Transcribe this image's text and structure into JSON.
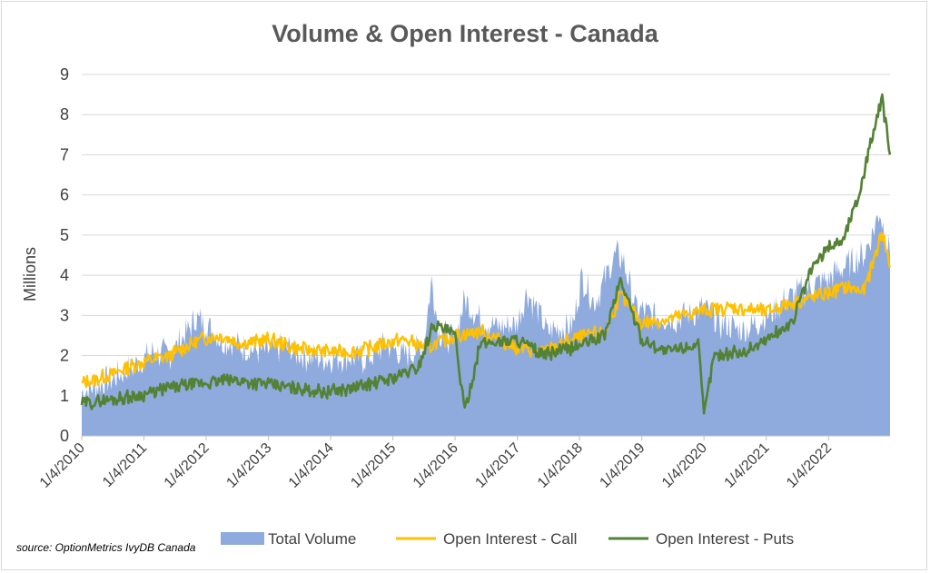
{
  "chart_data": {
    "type": "area",
    "title": "Volume & Open Interest - Canada",
    "ylabel": "Millions",
    "xlabel": "",
    "ylim": [
      0,
      9
    ],
    "yticks": [
      0,
      1,
      2,
      3,
      4,
      5,
      6,
      7,
      8,
      9
    ],
    "xticks": [
      "1/4/2010",
      "1/4/2011",
      "1/4/2012",
      "1/4/2013",
      "1/4/2014",
      "1/4/2015",
      "1/4/2016",
      "1/4/2017",
      "1/4/2018",
      "1/4/2019",
      "1/4/2020",
      "1/4/2021",
      "1/4/2022"
    ],
    "xrange": [
      "2010-01-04",
      "2022-12-31"
    ],
    "grid": "horizontal",
    "legend_position": "bottom",
    "source_note": "source: OptionMetrics IvyDB Canada",
    "series": [
      {
        "name": "Total Volume",
        "kind": "area",
        "color": "#8faadc",
        "points": [
          [
            "2010-01-04",
            1.1
          ],
          [
            "2010-07-01",
            1.4
          ],
          [
            "2010-12-01",
            1.8
          ],
          [
            "2011-03-01",
            2.1
          ],
          [
            "2011-06-01",
            2.0
          ],
          [
            "2011-09-01",
            2.5
          ],
          [
            "2011-11-01",
            2.9
          ],
          [
            "2012-01-04",
            2.8
          ],
          [
            "2012-04-01",
            2.4
          ],
          [
            "2012-08-01",
            2.2
          ],
          [
            "2012-12-01",
            2.1
          ],
          [
            "2013-04-01",
            2.2
          ],
          [
            "2013-08-01",
            2.0
          ],
          [
            "2013-12-01",
            1.9
          ],
          [
            "2014-04-01",
            2.0
          ],
          [
            "2014-08-01",
            1.9
          ],
          [
            "2014-12-01",
            2.3
          ],
          [
            "2015-03-01",
            2.0
          ],
          [
            "2015-07-01",
            2.2
          ],
          [
            "2015-08-20",
            3.9
          ],
          [
            "2015-10-01",
            2.6
          ],
          [
            "2016-01-04",
            2.4
          ],
          [
            "2016-03-01",
            3.4
          ],
          [
            "2016-06-01",
            2.9
          ],
          [
            "2016-10-01",
            2.7
          ],
          [
            "2017-01-04",
            2.8
          ],
          [
            "2017-03-01",
            3.6
          ],
          [
            "2017-07-01",
            2.6
          ],
          [
            "2017-12-01",
            2.8
          ],
          [
            "2018-01-15",
            4.0
          ],
          [
            "2018-04-01",
            3.3
          ],
          [
            "2018-08-01",
            4.5
          ],
          [
            "2018-09-15",
            4.4
          ],
          [
            "2018-12-01",
            3.2
          ],
          [
            "2019-03-01",
            3.0
          ],
          [
            "2019-08-01",
            2.9
          ],
          [
            "2020-01-04",
            3.2
          ],
          [
            "2020-04-01",
            2.8
          ],
          [
            "2020-09-01",
            2.6
          ],
          [
            "2021-01-04",
            3.0
          ],
          [
            "2021-06-01",
            3.5
          ],
          [
            "2021-11-01",
            3.8
          ],
          [
            "2022-01-04",
            3.9
          ],
          [
            "2022-04-01",
            4.2
          ],
          [
            "2022-08-01",
            4.5
          ],
          [
            "2022-11-01",
            5.6
          ],
          [
            "2022-12-31",
            4.5
          ]
        ]
      },
      {
        "name": "Open Interest - Call",
        "kind": "line",
        "color": "#ffc000",
        "points": [
          [
            "2010-01-04",
            1.3
          ],
          [
            "2010-06-01",
            1.5
          ],
          [
            "2010-12-01",
            1.8
          ],
          [
            "2011-06-01",
            2.0
          ],
          [
            "2011-12-01",
            2.4
          ],
          [
            "2012-04-01",
            2.5
          ],
          [
            "2012-08-01",
            2.3
          ],
          [
            "2013-01-04",
            2.4
          ],
          [
            "2013-06-01",
            2.2
          ],
          [
            "2013-12-01",
            2.1
          ],
          [
            "2014-06-01",
            2.1
          ],
          [
            "2014-12-01",
            2.3
          ],
          [
            "2015-03-01",
            2.4
          ],
          [
            "2015-08-01",
            2.2
          ],
          [
            "2016-01-04",
            2.5
          ],
          [
            "2016-06-01",
            2.6
          ],
          [
            "2017-01-04",
            2.2
          ],
          [
            "2017-06-01",
            2.1
          ],
          [
            "2017-12-01",
            2.4
          ],
          [
            "2018-06-01",
            2.6
          ],
          [
            "2018-09-01",
            3.5
          ],
          [
            "2019-01-04",
            2.8
          ],
          [
            "2019-06-01",
            2.9
          ],
          [
            "2019-12-01",
            3.1
          ],
          [
            "2020-06-01",
            3.2
          ],
          [
            "2021-01-04",
            3.1
          ],
          [
            "2021-06-01",
            3.3
          ],
          [
            "2021-12-01",
            3.5
          ],
          [
            "2022-04-01",
            3.7
          ],
          [
            "2022-08-01",
            3.6
          ],
          [
            "2022-11-15",
            5.1
          ],
          [
            "2022-12-31",
            4.2
          ]
        ]
      },
      {
        "name": "Open Interest - Puts",
        "kind": "line",
        "color": "#548235",
        "points": [
          [
            "2010-01-04",
            0.8
          ],
          [
            "2010-06-01",
            0.9
          ],
          [
            "2010-12-01",
            1.0
          ],
          [
            "2011-06-01",
            1.2
          ],
          [
            "2011-12-01",
            1.3
          ],
          [
            "2012-06-01",
            1.4
          ],
          [
            "2012-12-01",
            1.3
          ],
          [
            "2013-06-01",
            1.2
          ],
          [
            "2013-12-01",
            1.1
          ],
          [
            "2014-06-01",
            1.2
          ],
          [
            "2014-12-01",
            1.4
          ],
          [
            "2015-06-01",
            1.7
          ],
          [
            "2015-09-01",
            2.8
          ],
          [
            "2016-01-04",
            2.5
          ],
          [
            "2016-03-01",
            0.6
          ],
          [
            "2016-06-01",
            2.3
          ],
          [
            "2017-01-04",
            2.4
          ],
          [
            "2017-06-01",
            2.0
          ],
          [
            "2017-12-01",
            2.2
          ],
          [
            "2018-06-01",
            2.5
          ],
          [
            "2018-09-01",
            3.9
          ],
          [
            "2019-01-04",
            2.4
          ],
          [
            "2019-06-01",
            2.1
          ],
          [
            "2019-12-01",
            2.3
          ],
          [
            "2020-01-04",
            0.5
          ],
          [
            "2020-03-01",
            2.0
          ],
          [
            "2020-09-01",
            2.1
          ],
          [
            "2021-01-04",
            2.4
          ],
          [
            "2021-06-01",
            2.8
          ],
          [
            "2021-10-01",
            4.2
          ],
          [
            "2022-01-04",
            4.7
          ],
          [
            "2022-04-01",
            4.9
          ],
          [
            "2022-07-01",
            6.0
          ],
          [
            "2022-09-01",
            7.2
          ],
          [
            "2022-11-15",
            8.4
          ],
          [
            "2022-12-31",
            7.0
          ]
        ]
      }
    ]
  }
}
